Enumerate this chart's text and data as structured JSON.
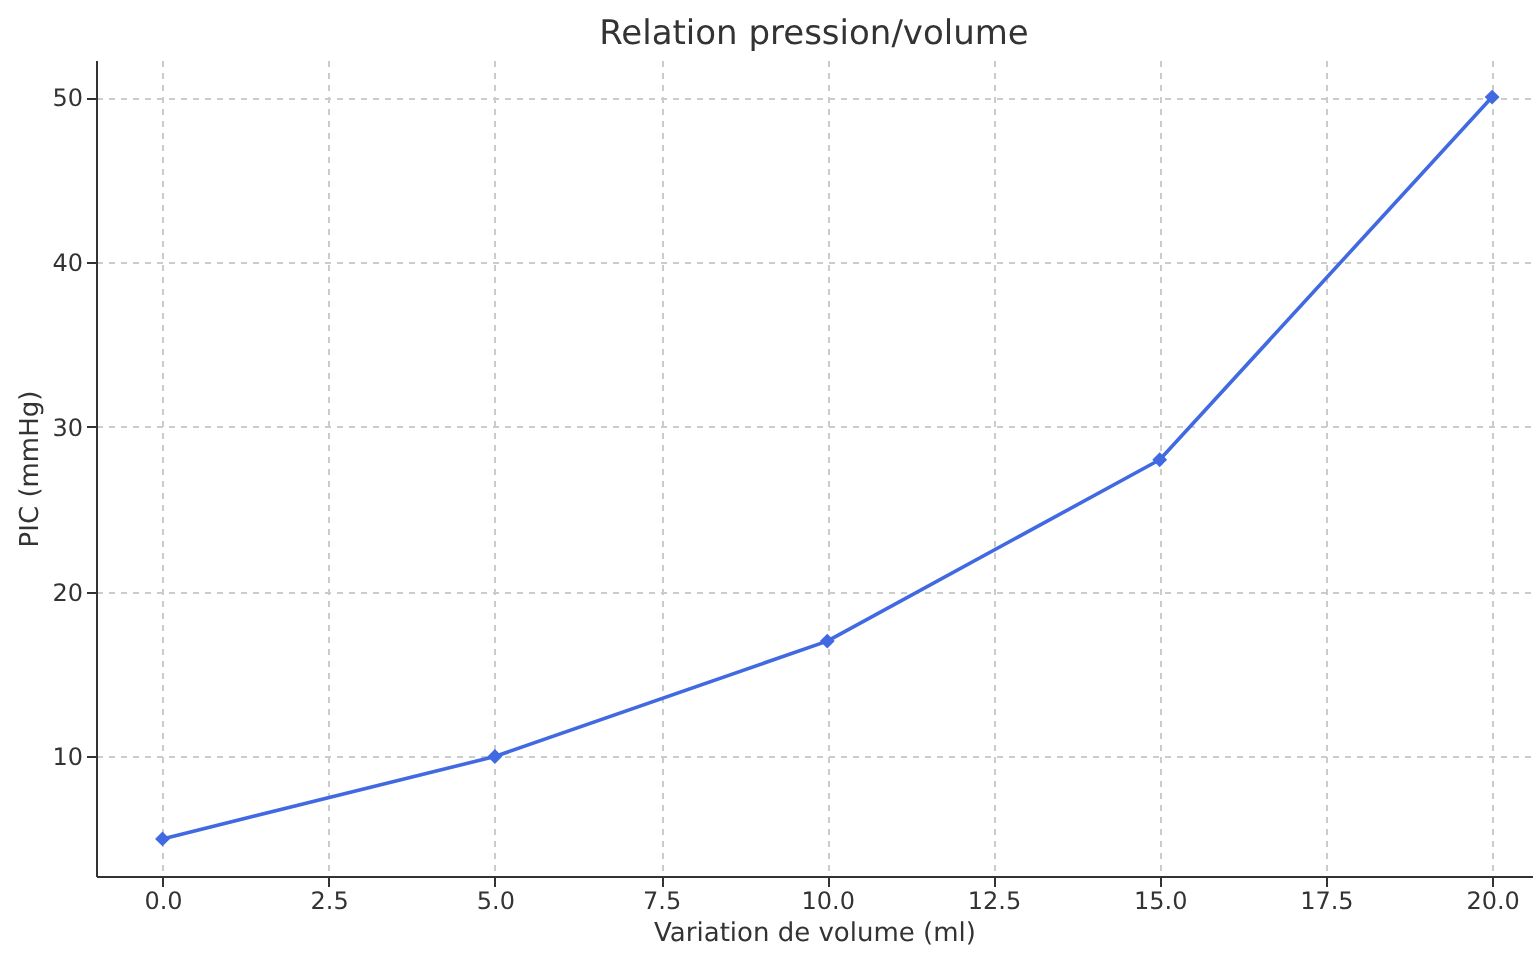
{
  "chart_data": {
    "type": "line",
    "title": "Relation pression/volume",
    "xlabel": "Variation de volume (ml)",
    "ylabel": "PIC (mmHg)",
    "x": [
      0,
      5,
      10,
      15,
      20
    ],
    "series": [
      {
        "color": "#4169e1",
        "values": [
          5,
          10,
          17,
          28,
          50
        ]
      }
    ],
    "xlim": [
      -1,
      20.6
    ],
    "ylim": [
      2.75,
      52.25
    ],
    "xticks": [
      {
        "value": 0,
        "label": "0.0"
      },
      {
        "value": 2.5,
        "label": "2.5"
      },
      {
        "value": 5,
        "label": "5.0"
      },
      {
        "value": 7.5,
        "label": "7.5"
      },
      {
        "value": 10,
        "label": "10.0"
      },
      {
        "value": 12.5,
        "label": "12.5"
      },
      {
        "value": 15,
        "label": "15.0"
      },
      {
        "value": 17.5,
        "label": "17.5"
      },
      {
        "value": 20,
        "label": "20.0"
      }
    ],
    "yticks": [
      10,
      20,
      30,
      40,
      50
    ],
    "grid": true,
    "marker": "diamond",
    "line_style": "solid"
  }
}
